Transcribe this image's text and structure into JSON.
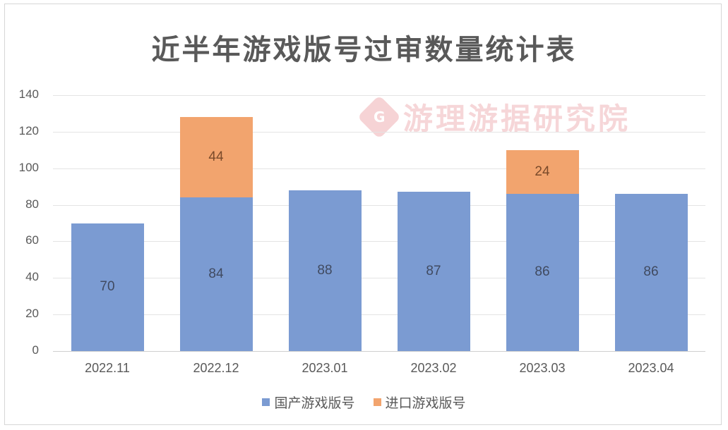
{
  "title": "近半年游戏版号过审数量统计表",
  "watermark": {
    "logo_letter": "G",
    "text": "游理游据研究院",
    "color": "#f6d6d8"
  },
  "colors": {
    "domestic": "#7b9bd2",
    "imported": "#f2a46e"
  },
  "legend": [
    {
      "label": "国产游戏版号",
      "color": "#7b9bd2"
    },
    {
      "label": "进口游戏版号",
      "color": "#f2a46e"
    }
  ],
  "y_ticks": [
    "0",
    "20",
    "40",
    "60",
    "80",
    "100",
    "120",
    "140"
  ],
  "x_ticks": [
    "2022.11",
    "2022.12",
    "2023.01",
    "2023.02",
    "2023.03",
    "2023.04"
  ],
  "chart_data": {
    "type": "bar",
    "stacked": true,
    "title": "近半年游戏版号过审数量统计表",
    "categories": [
      "2022.11",
      "2022.12",
      "2023.01",
      "2023.02",
      "2023.03",
      "2023.04"
    ],
    "series": [
      {
        "name": "国产游戏版号",
        "values": [
          70,
          84,
          88,
          87,
          86,
          86
        ],
        "color": "#7b9bd2"
      },
      {
        "name": "进口游戏版号",
        "values": [
          0,
          44,
          0,
          0,
          24,
          0
        ],
        "color": "#f2a46e"
      }
    ],
    "data_labels": {
      "国产游戏版号": [
        "70",
        "84",
        "88",
        "87",
        "86",
        "86"
      ],
      "进口游戏版号": [
        "",
        "44",
        "",
        "",
        "24",
        ""
      ]
    },
    "xlabel": "",
    "ylabel": "",
    "ylim": [
      0,
      140
    ],
    "y_tick_step": 20,
    "grid": true,
    "legend_position": "bottom"
  }
}
